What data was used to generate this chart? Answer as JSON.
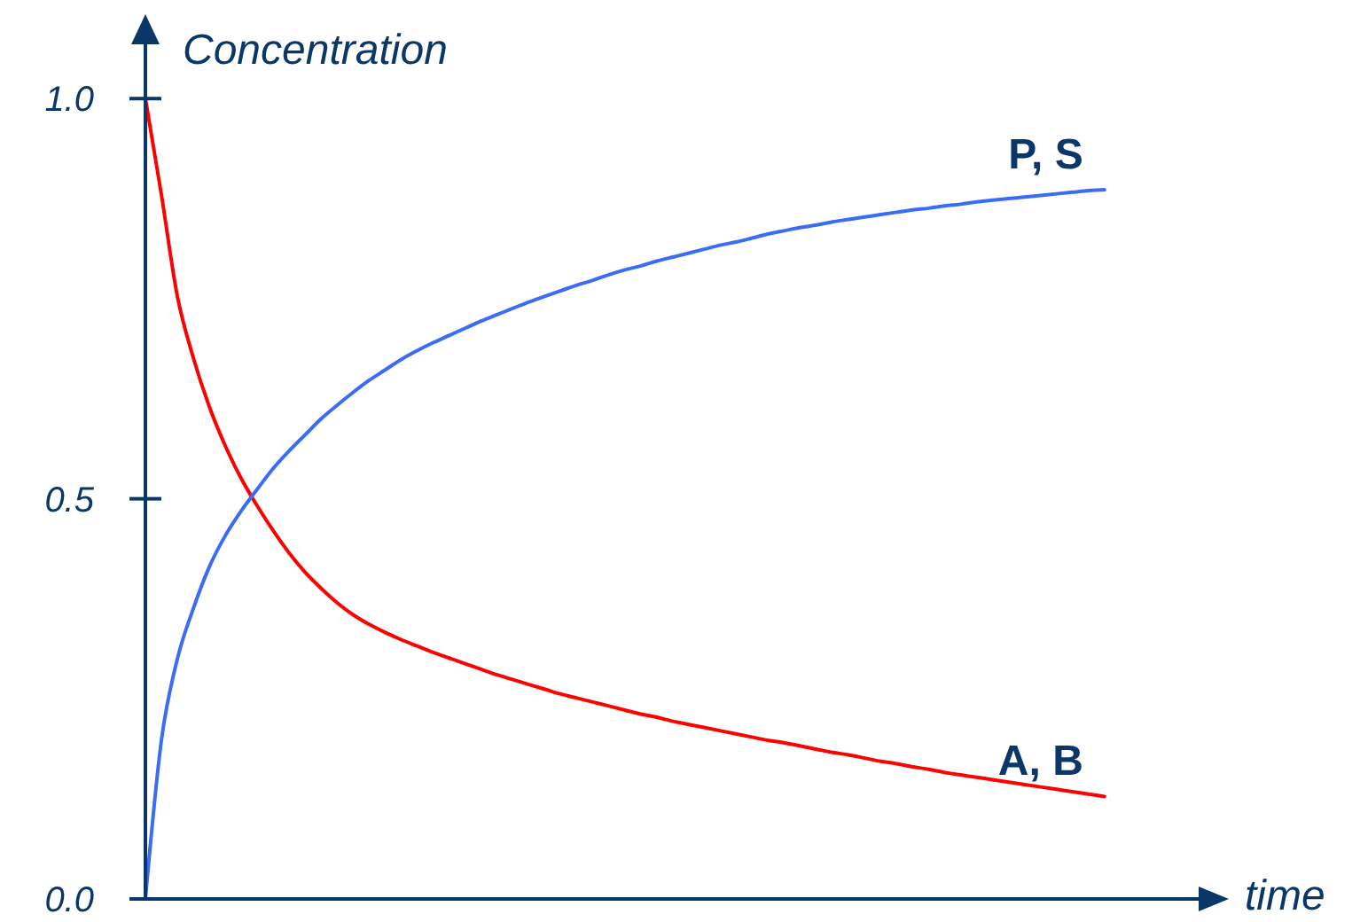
{
  "chart_data": {
    "type": "line",
    "xlabel": "time",
    "ylabel": "Concentration",
    "categories": [
      null,
      null,
      null,
      null,
      null,
      null,
      null,
      null,
      null,
      null,
      null,
      null,
      null,
      null,
      null,
      null,
      null,
      null,
      null,
      null,
      null,
      null,
      null,
      null,
      null,
      null,
      null,
      null,
      null,
      null,
      null,
      null,
      null,
      null,
      null,
      null,
      null,
      null,
      null,
      null,
      null,
      null,
      null,
      null,
      null,
      null,
      null,
      null,
      null,
      null,
      null,
      null,
      null,
      null,
      null,
      null,
      null,
      null,
      null,
      null,
      null,
      null,
      null,
      null,
      null,
      null,
      null
    ],
    "series": [
      {
        "name": "A, B",
        "color": "#ff0000",
        "values": [
          1.0,
          0.88,
          0.753,
          0.676,
          0.615,
          0.566,
          0.525,
          0.491,
          0.46,
          0.432,
          0.408,
          0.388,
          0.37,
          0.355,
          0.343,
          0.333,
          0.324,
          0.316,
          0.308,
          0.301,
          0.294,
          0.287,
          0.28,
          0.274,
          0.268,
          0.262,
          0.256,
          0.251,
          0.246,
          0.241,
          0.236,
          0.231,
          0.227,
          0.222,
          0.218,
          0.214,
          0.21,
          0.206,
          0.202,
          0.198,
          0.195,
          0.191,
          0.187,
          0.183,
          0.18,
          0.176,
          0.172,
          0.169,
          0.165,
          0.162,
          0.158,
          0.155,
          0.152,
          0.149,
          0.146,
          0.143,
          0.14,
          0.137,
          0.134,
          0.131,
          0.128,
          null,
          null,
          null,
          null,
          null,
          null
        ]
      },
      {
        "name": "P, S",
        "color": "#3b6cf6",
        "values": [
          0.0,
          0.198,
          0.3,
          0.363,
          0.415,
          0.454,
          0.485,
          0.512,
          0.538,
          0.56,
          0.58,
          0.6,
          0.617,
          0.633,
          0.648,
          0.661,
          0.674,
          0.685,
          0.695,
          0.704,
          0.713,
          0.722,
          0.73,
          0.738,
          0.746,
          0.753,
          0.76,
          0.767,
          0.773,
          0.78,
          0.786,
          0.791,
          0.797,
          0.802,
          0.807,
          0.812,
          0.817,
          0.821,
          0.826,
          0.831,
          0.835,
          0.839,
          0.842,
          0.846,
          0.849,
          0.852,
          0.855,
          0.858,
          0.861,
          0.863,
          0.866,
          0.868,
          0.871,
          0.873,
          0.875,
          0.877,
          0.879,
          0.881,
          0.883,
          0.885,
          0.886,
          null,
          null,
          null,
          null,
          null,
          null
        ]
      }
    ],
    "ylim": [
      0,
      1.07
    ],
    "yticks": [
      {
        "value": 0,
        "label": "0.0"
      },
      0.5,
      {
        "value": 1,
        "label": "1.0"
      }
    ],
    "marker": "none",
    "line_style": "solid",
    "tick_labels": "y"
  }
}
